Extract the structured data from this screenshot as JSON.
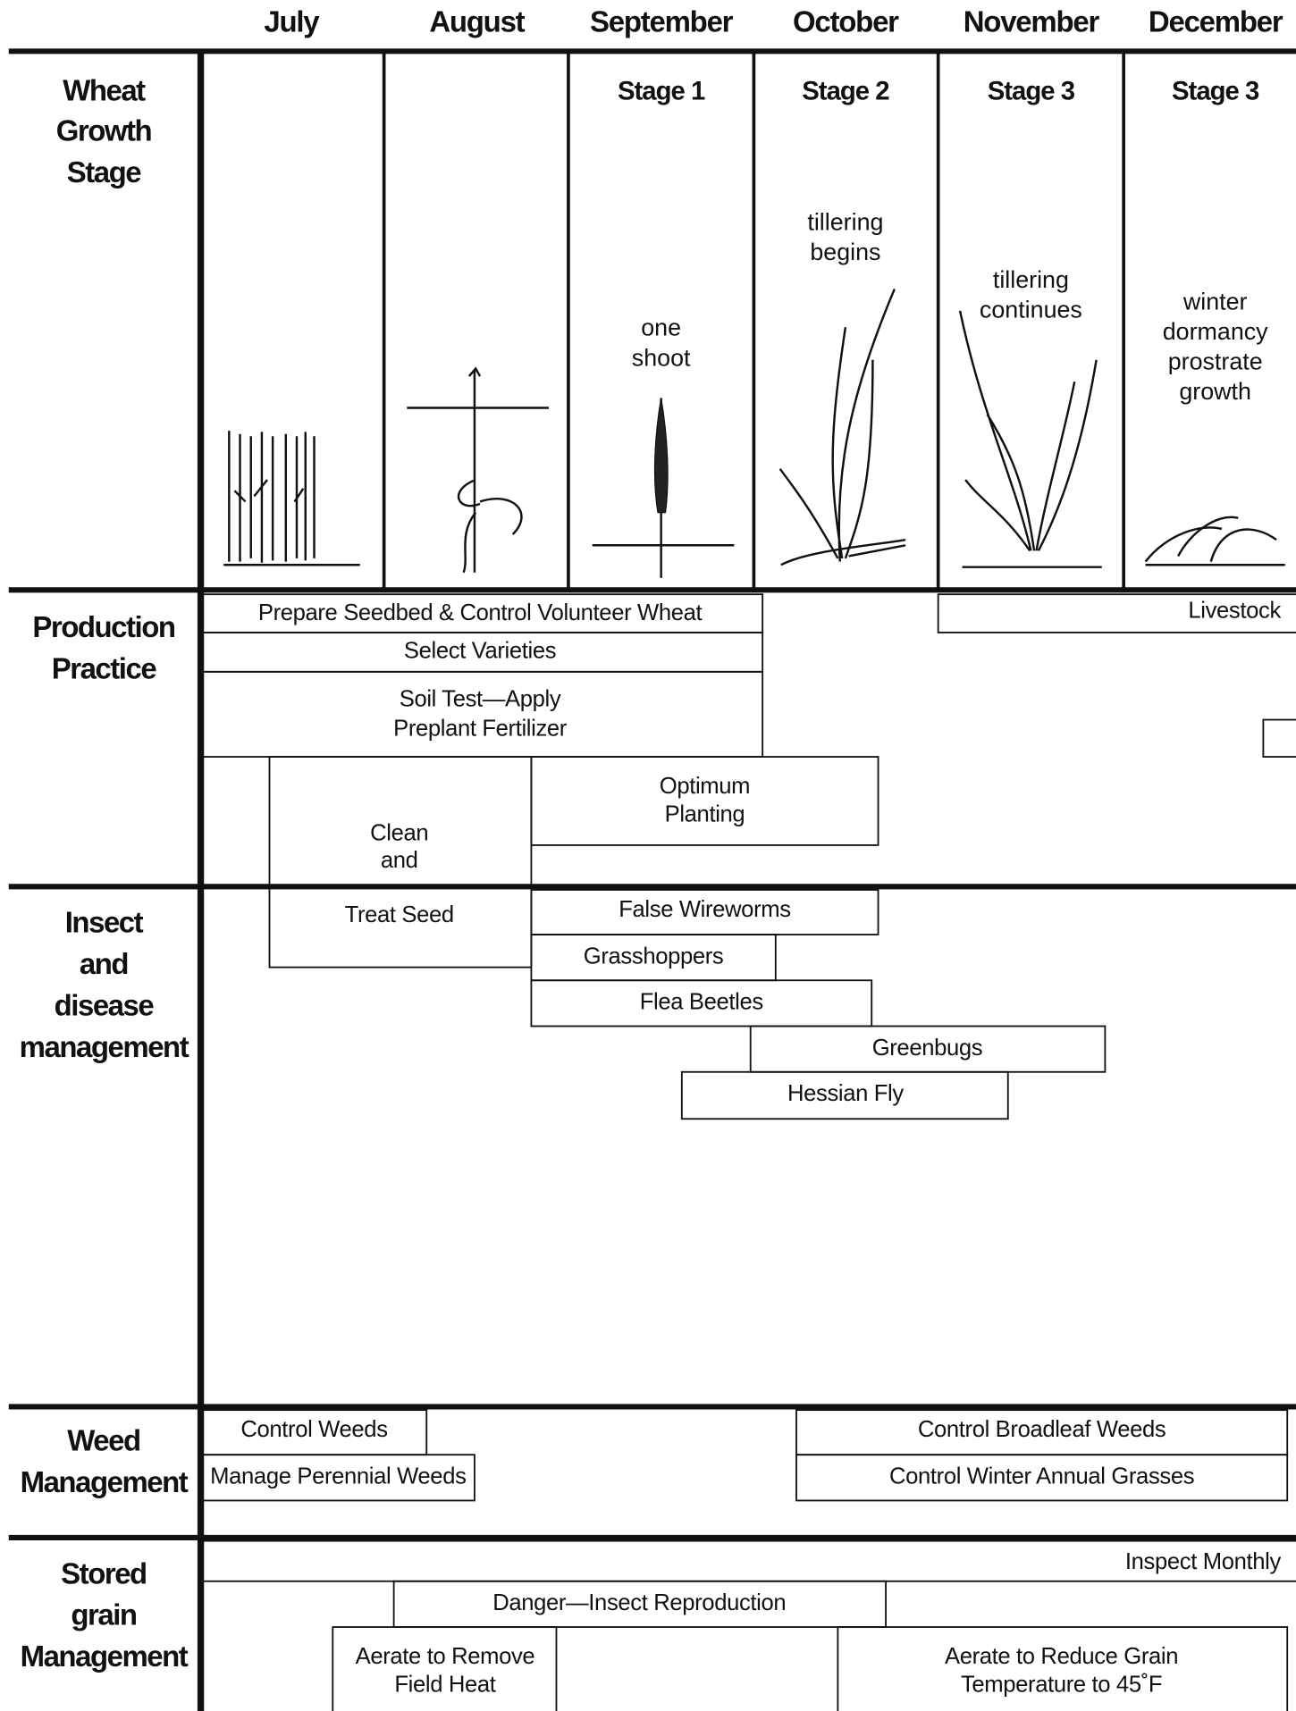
{
  "months": [
    "July",
    "August",
    "September",
    "October",
    "November",
    "December"
  ],
  "sections": [
    {
      "label": [
        "Wheat",
        "Growth",
        "Stage"
      ]
    },
    {
      "label": [
        "Production",
        "Practice"
      ]
    },
    {
      "label": [
        "Insect",
        "and",
        "disease",
        "management"
      ]
    },
    {
      "label": [
        "Weed",
        "Management"
      ]
    },
    {
      "label": [
        "Stored",
        "grain",
        "Management"
      ]
    }
  ],
  "stages": [
    "Stage 1",
    "Stage 2",
    "Stage 3",
    "Stage 3"
  ],
  "stage_notes": [
    [
      "one",
      "shoot"
    ],
    [
      "tillering",
      "begins"
    ],
    [
      "tillering",
      "continues"
    ],
    [
      "winter",
      "dormancy",
      "prostrate",
      "growth"
    ]
  ],
  "production_practice": [
    {
      "lines": [
        "Prepare Seedbed & Control Volunteer Wheat"
      ]
    },
    {
      "lines": [
        "Select Varieties"
      ]
    },
    {
      "lines": [
        "Soil Test—Apply",
        "Preplant Fertilizer"
      ]
    },
    {
      "lines": [
        "Clean",
        "and",
        "Treat Seed"
      ]
    },
    {
      "lines": [
        "Optimum",
        "Planting"
      ]
    },
    {
      "lines": [
        "Livestock"
      ]
    }
  ],
  "insect_disease_management": [
    {
      "lines": [
        "False Wireworms"
      ]
    },
    {
      "lines": [
        "Grasshoppers"
      ]
    },
    {
      "lines": [
        "Flea Beetles"
      ]
    },
    {
      "lines": [
        "Greenbugs"
      ]
    },
    {
      "lines": [
        "Hessian Fly"
      ]
    }
  ],
  "weed_management": [
    {
      "lines": [
        "Control Weeds"
      ]
    },
    {
      "lines": [
        "Manage Perennial Weeds"
      ]
    },
    {
      "lines": [
        "Control Broadleaf Weeds"
      ]
    },
    {
      "lines": [
        "Control Winter Annual Grasses"
      ]
    }
  ],
  "stored_grain_management": [
    {
      "lines": [
        "Inspect Monthly"
      ]
    },
    {
      "lines": [
        "Danger—Insect Reproduction"
      ]
    },
    {
      "lines": [
        "Aerate to Remove",
        "Field Heat"
      ]
    },
    {
      "lines": [
        "Aerate to Reduce Grain",
        "Temperature to 45˚F"
      ]
    }
  ]
}
